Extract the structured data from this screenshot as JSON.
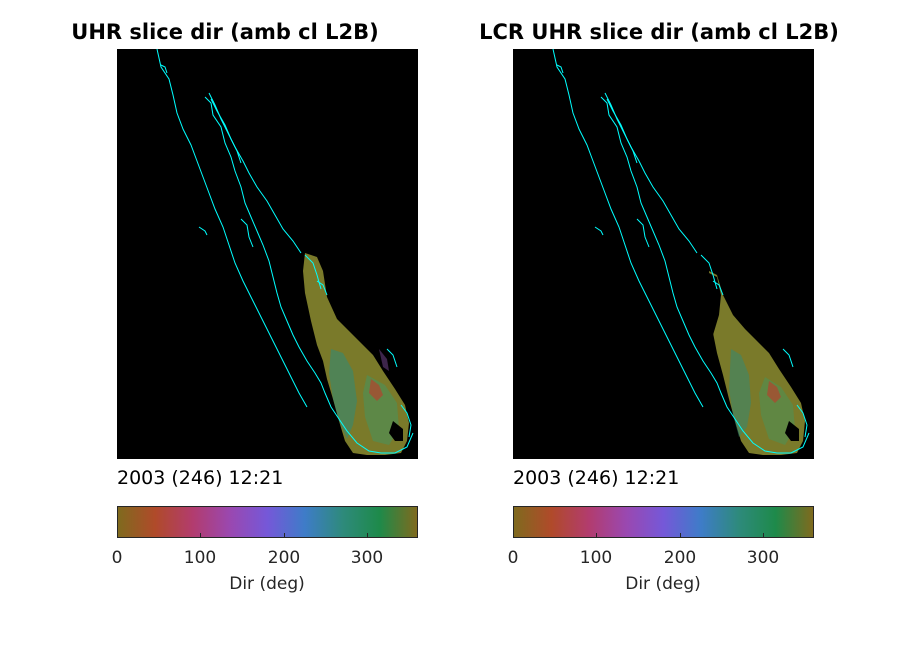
{
  "figure": {
    "panels": [
      {
        "title": "UHR slice dir (amb cl L2B)",
        "timestamp": "2003 (246) 12:21",
        "colorbar": {
          "label": "Dir (deg)",
          "ticks": [
            "0",
            "100",
            "200",
            "300"
          ]
        }
      },
      {
        "title": "LCR UHR slice dir (amb cl L2B)",
        "timestamp": "2003 (246) 12:21",
        "colorbar": {
          "label": "Dir (deg)",
          "ticks": [
            "0",
            "100",
            "200",
            "300"
          ]
        }
      }
    ]
  },
  "chart_data": [
    {
      "type": "heatmap",
      "title": "UHR slice dir (amb cl L2B)",
      "colorbar": {
        "label": "Dir (deg)",
        "range": [
          0,
          360
        ],
        "ticks": [
          0,
          100,
          200,
          300
        ]
      },
      "colors": {
        "background": "#000000",
        "coastline": "#00ffff",
        "dominant": "#7a7a2a"
      }
    },
    {
      "type": "heatmap",
      "title": "LCR UHR slice dir (amb cl L2B)",
      "colorbar": {
        "label": "Dir (deg)",
        "range": [
          0,
          360
        ],
        "ticks": [
          0,
          100,
          200,
          300
        ]
      },
      "colors": {
        "background": "#000000",
        "coastline": "#00ffff",
        "dominant": "#7a7a2a"
      }
    }
  ]
}
